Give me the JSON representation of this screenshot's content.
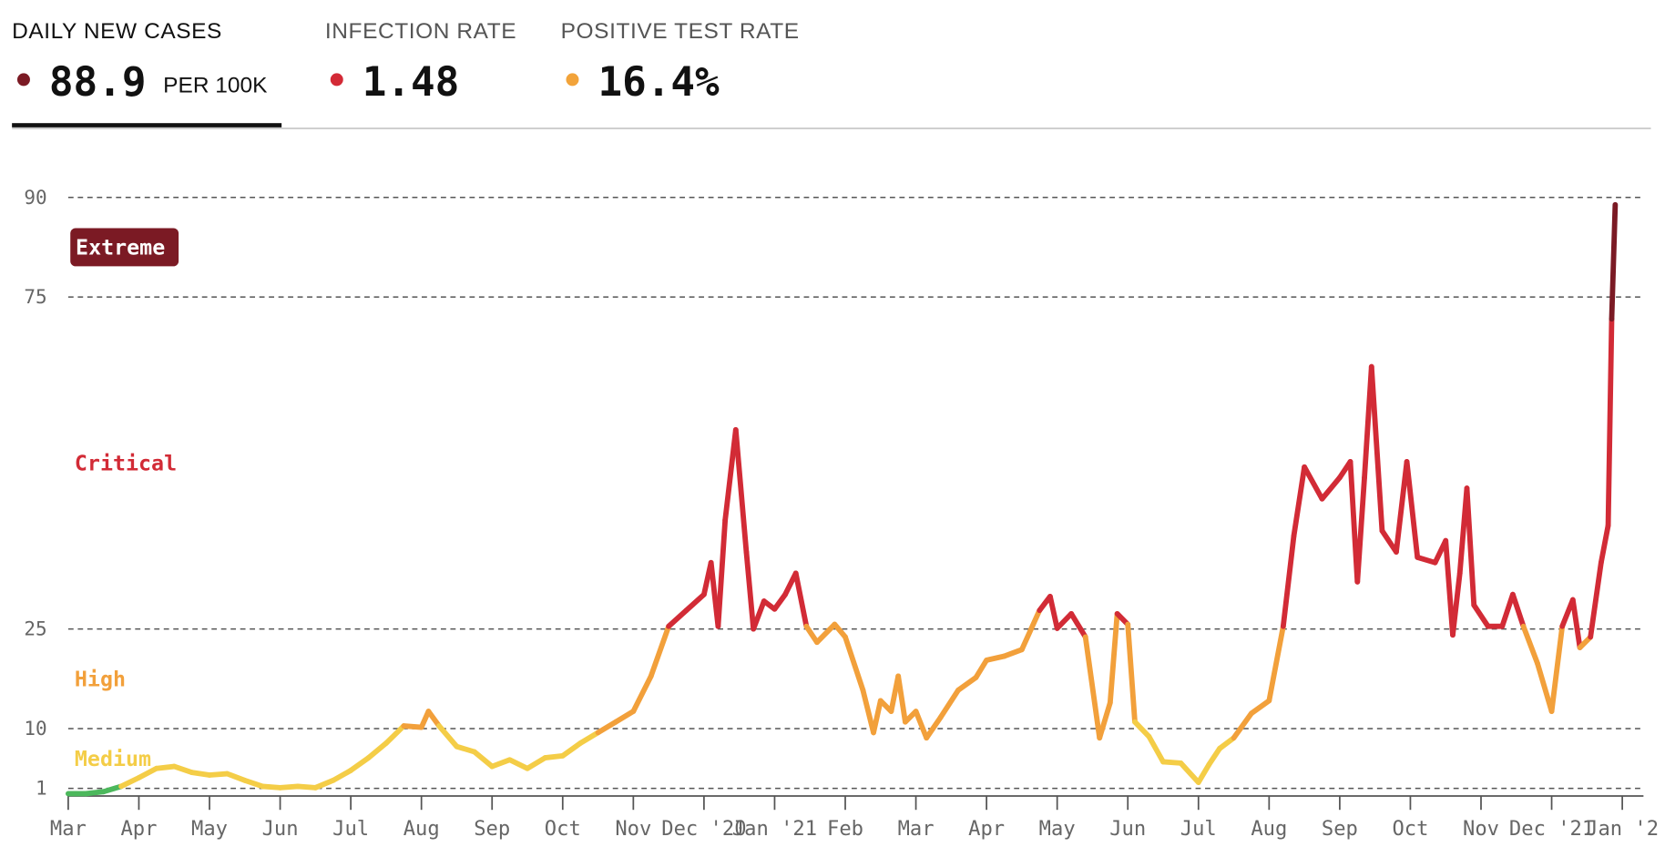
{
  "tabs": [
    {
      "title": "DAILY NEW CASES",
      "value": "88.9",
      "unit": "PER 100K",
      "color": "#7b1a24"
    },
    {
      "title": "INFECTION RATE",
      "value": "1.48",
      "color": "#d32a36"
    },
    {
      "title": "POSITIVE TEST RATE",
      "value": "16.4%",
      "color": "#f2a33a"
    }
  ],
  "chart_data": {
    "type": "line",
    "zones": [
      {
        "min": 0,
        "color": "#4cb85c"
      },
      {
        "label": "Medium",
        "min": 1,
        "color": "#f4cd47"
      },
      {
        "label": "High",
        "min": 10,
        "color": "#f2a03b"
      },
      {
        "label": "Critical",
        "min": 25,
        "color": "#d22b36"
      },
      {
        "label": "Extreme",
        "min": 75,
        "color": "#7b1a24"
      }
    ],
    "x": [
      0,
      0.25,
      0.5,
      0.75,
      1,
      1.25,
      1.5,
      1.75,
      2,
      2.25,
      2.5,
      2.75,
      3,
      3.25,
      3.5,
      3.75,
      4,
      4.25,
      4.5,
      4.75,
      5,
      5.1,
      5.25,
      5.5,
      5.75,
      6,
      6.25,
      6.5,
      6.75,
      7,
      7.25,
      7.5,
      7.75,
      8,
      8.25,
      8.5,
      8.75,
      9,
      9.1,
      9.2,
      9.3,
      9.45,
      9.6,
      9.7,
      9.85,
      10,
      10.15,
      10.3,
      10.45,
      10.6,
      10.85,
      11,
      11.25,
      11.4,
      11.5,
      11.65,
      11.75,
      11.85,
      12,
      12.15,
      12.35,
      12.6,
      12.85,
      13,
      13.25,
      13.5,
      13.75,
      13.9,
      14,
      14.2,
      14.4,
      14.6,
      14.75,
      14.85,
      15,
      15.1,
      15.3,
      15.5,
      15.75,
      16,
      16.15,
      16.3,
      16.5,
      16.75,
      17,
      17.2,
      17.35,
      17.5,
      17.75,
      18,
      18.15,
      18.25,
      18.35,
      18.45,
      18.6,
      18.8,
      18.95,
      19.1,
      19.35,
      19.5,
      19.6,
      19.7,
      19.8,
      19.9,
      20.1,
      20.3,
      20.45,
      20.6,
      20.8,
      21,
      21.15,
      21.3,
      21.4,
      21.55,
      21.7,
      21.8,
      21.85,
      21.9
    ],
    "values": [
      0.2,
      0.2,
      0.5,
      1.3,
      2.6,
      4,
      4.3,
      3.4,
      3,
      3.2,
      2.2,
      1.3,
      1.1,
      1.3,
      1.1,
      2.2,
      3.7,
      5.6,
      7.8,
      10.4,
      10.2,
      12.6,
      10.4,
      7.3,
      6.5,
      4.3,
      5.3,
      4,
      5.6,
      5.9,
      7.8,
      9.4,
      11,
      12.6,
      17.9,
      25.4,
      27.8,
      30.2,
      35,
      25.4,
      41.4,
      55,
      36.6,
      25,
      29.2,
      28,
      30.2,
      33.4,
      25.4,
      23,
      25.7,
      23.8,
      15.8,
      9.4,
      14.2,
      12.6,
      17.9,
      11,
      12.6,
      8.6,
      11.7,
      15.8,
      17.7,
      20.3,
      20.9,
      21.9,
      27.8,
      29.9,
      25.1,
      27.3,
      23.8,
      8.6,
      13.9,
      27.3,
      25.7,
      11,
      8.8,
      5,
      4.8,
      1.9,
      4.6,
      7,
      8.6,
      12.3,
      14.2,
      25.4,
      39,
      49.4,
      44.6,
      47.8,
      50.2,
      32.1,
      47.8,
      64.5,
      39.8,
      36.6,
      50.2,
      35.8,
      35,
      38.3,
      24.1,
      33.4,
      46.2,
      28.6,
      25.4,
      25.4,
      30.2,
      25.4,
      19.8,
      12.6,
      25.4,
      29.4,
      22.2,
      23.8,
      35,
      40.6,
      71.7,
      88.9
    ],
    "xlim": [
      0,
      22.3
    ],
    "xticks": [
      {
        "value": 0,
        "label": "Mar"
      },
      {
        "value": 1,
        "label": "Apr"
      },
      {
        "value": 2,
        "label": "May"
      },
      {
        "value": 3,
        "label": "Jun"
      },
      {
        "value": 4,
        "label": "Jul"
      },
      {
        "value": 5,
        "label": "Aug"
      },
      {
        "value": 6,
        "label": "Sep"
      },
      {
        "value": 7,
        "label": "Oct"
      },
      {
        "value": 8,
        "label": "Nov"
      },
      {
        "value": 9,
        "label": "Dec '20"
      },
      {
        "value": 10,
        "label": "Jan '21"
      },
      {
        "value": 11,
        "label": "Feb"
      },
      {
        "value": 12,
        "label": "Mar"
      },
      {
        "value": 13,
        "label": "Apr"
      },
      {
        "value": 14,
        "label": "May"
      },
      {
        "value": 15,
        "label": "Jun"
      },
      {
        "value": 16,
        "label": "Jul"
      },
      {
        "value": 17,
        "label": "Aug"
      },
      {
        "value": 18,
        "label": "Sep"
      },
      {
        "value": 19,
        "label": "Oct"
      },
      {
        "value": 20,
        "label": "Nov"
      },
      {
        "value": 21,
        "label": "Dec '21"
      },
      {
        "value": 22,
        "label": "Jan '2"
      }
    ],
    "ylim": [
      0,
      90
    ],
    "yticks": [
      1,
      10,
      25,
      75,
      90
    ],
    "grid": true
  }
}
